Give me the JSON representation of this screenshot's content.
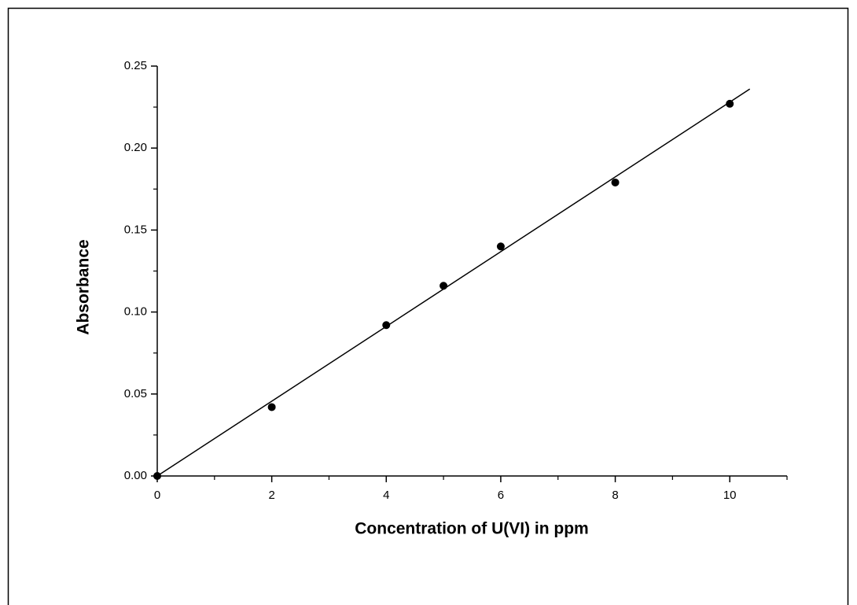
{
  "chart_data": {
    "type": "scatter",
    "x_label": "Concentration of U(VI) in ppm",
    "y_label": "Absorbance",
    "x": [
      0,
      2,
      4,
      5,
      6,
      8,
      10
    ],
    "values": [
      0,
      0.042,
      0.092,
      0.116,
      0.14,
      0.179,
      0.227
    ],
    "color": "#000000",
    "fit": {
      "x": [
        0,
        10.35
      ],
      "values": [
        0,
        0.236
      ],
      "color": "#000000"
    },
    "xlim": [
      0,
      11
    ],
    "ylim": [
      0,
      0.25
    ],
    "xticks": [
      0,
      2,
      4,
      6,
      8,
      10
    ],
    "xminor_ticks": [
      1,
      3,
      5,
      7,
      9,
      11
    ],
    "yticks": [
      {
        "value": 0,
        "label": "0.00"
      },
      {
        "value": 0.05,
        "label": "0.05"
      },
      {
        "value": 0.1,
        "label": "0.10"
      },
      {
        "value": 0.15,
        "label": "0.15"
      },
      {
        "value": 0.2,
        "label": "0.20"
      },
      {
        "value": 0.25,
        "label": "0.25"
      }
    ],
    "yminor_ticks": [
      0.025,
      0.075,
      0.125,
      0.175,
      0.225
    ],
    "grid": false
  }
}
